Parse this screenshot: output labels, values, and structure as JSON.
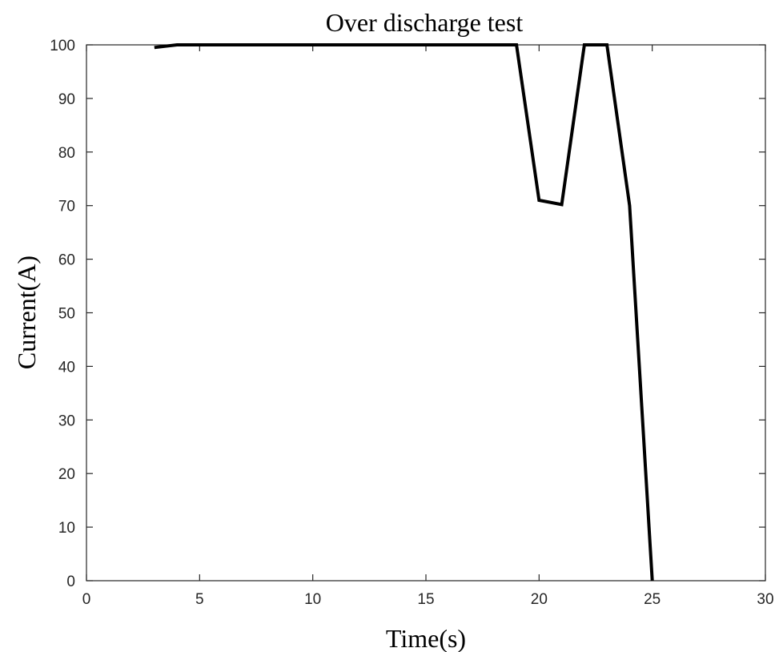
{
  "chart_data": {
    "type": "line",
    "title": "Over discharge test",
    "xlabel": "Time(s)",
    "ylabel": "Current(A)",
    "xlim": [
      0,
      30
    ],
    "ylim": [
      0,
      100
    ],
    "xticks": [
      0,
      5,
      10,
      15,
      20,
      25,
      30
    ],
    "yticks": [
      0,
      10,
      20,
      30,
      40,
      50,
      60,
      70,
      80,
      90,
      100
    ],
    "grid": false,
    "series": [
      {
        "color": "#000000",
        "points": [
          {
            "x": 3,
            "y": 99.5
          },
          {
            "x": 4,
            "y": 100
          },
          {
            "x": 19,
            "y": 100
          },
          {
            "x": 20,
            "y": 71
          },
          {
            "x": 21,
            "y": 70.2
          },
          {
            "x": 22,
            "y": 100
          },
          {
            "x": 23,
            "y": 100
          },
          {
            "x": 24,
            "y": 70
          },
          {
            "x": 25,
            "y": 0
          }
        ]
      }
    ]
  }
}
